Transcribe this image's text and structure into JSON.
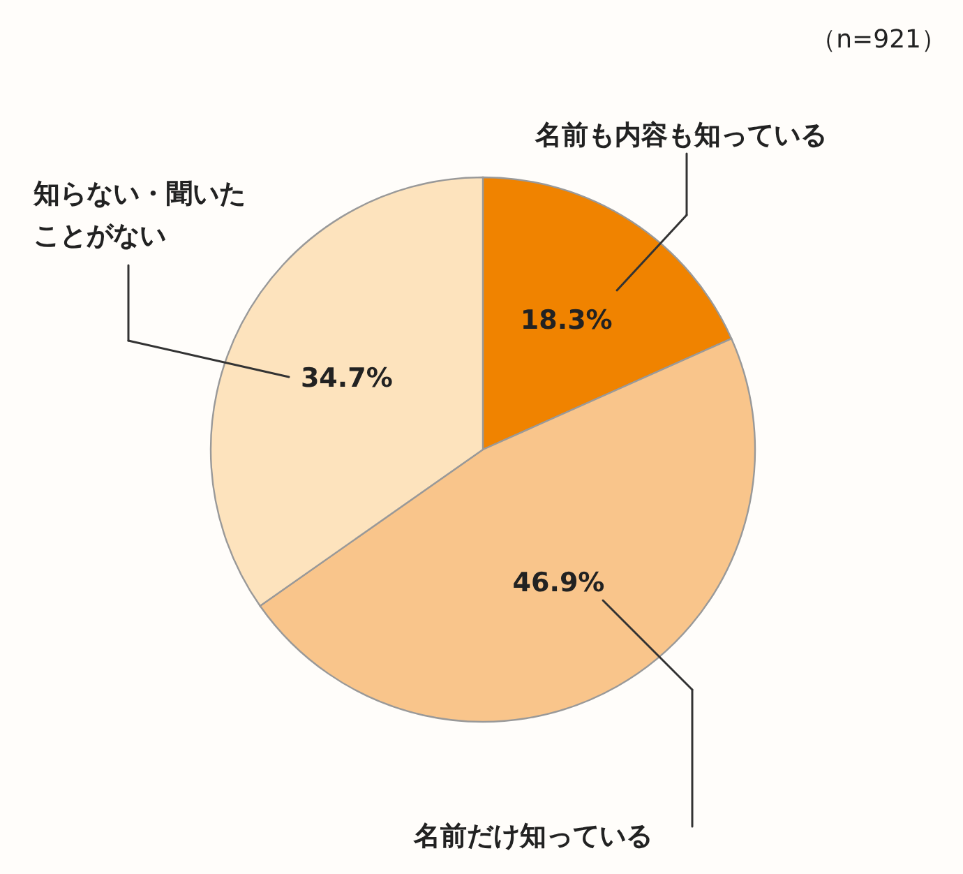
{
  "chart_data": {
    "type": "pie",
    "categories": [
      "名前も内容も知っている",
      "名前だけ知っている",
      "知らない・聞いたことがない"
    ],
    "values": [
      18.3,
      46.9,
      34.7
    ],
    "value_labels": [
      "18.3%",
      "46.9%",
      "34.7%"
    ],
    "colors": [
      "#f08300",
      "#f9c58b",
      "#fde3bd"
    ],
    "annotations": [
      "（n=921）"
    ]
  }
}
